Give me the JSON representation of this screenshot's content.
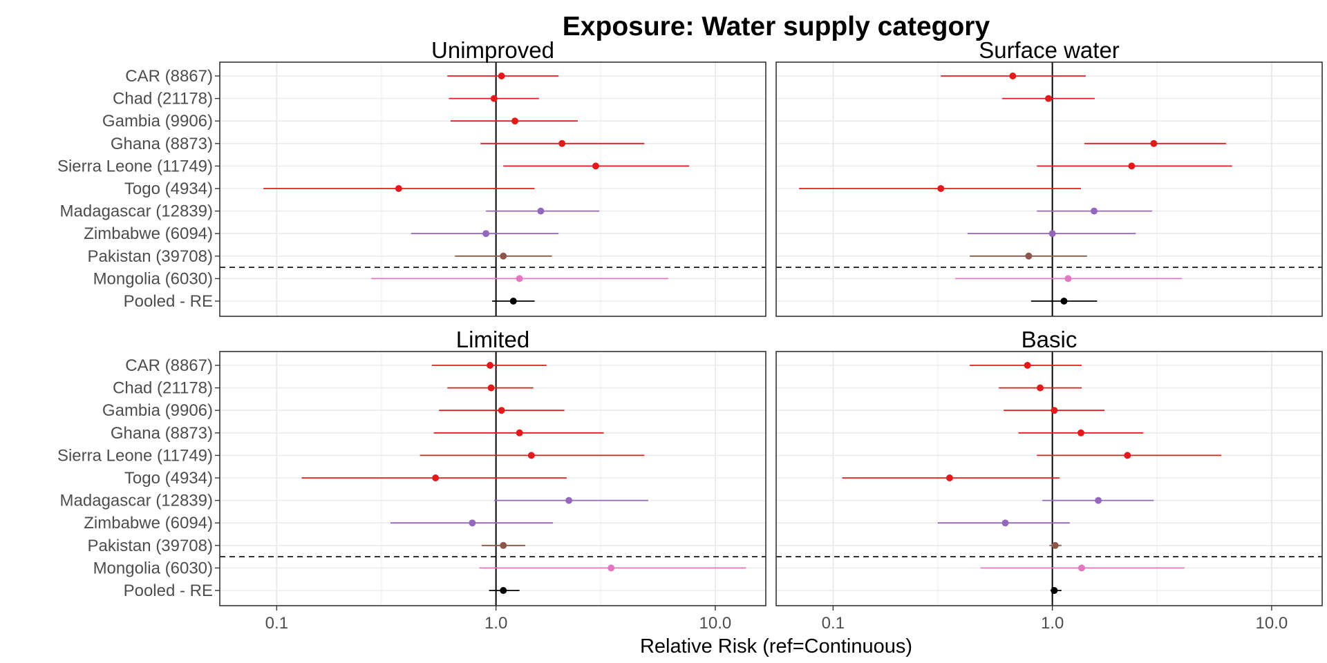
{
  "chart_data": {
    "type": "forest",
    "title": "Exposure: Water supply category",
    "xlabel": "Relative Risk (ref=Continuous)",
    "x_scale": "log",
    "xlim": [
      0.055,
      17
    ],
    "x_ticks": [
      {
        "value": 0.1,
        "label": "0.1"
      },
      {
        "value": 1.0,
        "label": "1.0"
      },
      {
        "value": 10.0,
        "label": "10.0"
      }
    ],
    "reference_line": 1.0,
    "grid": true,
    "rows": [
      {
        "label": "CAR (8867)",
        "color": "#e31a1c"
      },
      {
        "label": "Chad (21178)",
        "color": "#e31a1c"
      },
      {
        "label": "Gambia (9906)",
        "color": "#e31a1c"
      },
      {
        "label": "Ghana (8873)",
        "color": "#e31a1c"
      },
      {
        "label": "Sierra Leone (11749)",
        "color": "#e31a1c"
      },
      {
        "label": "Togo (4934)",
        "color": "#e31a1c"
      },
      {
        "label": "Madagascar (12839)",
        "color": "#9467bd"
      },
      {
        "label": "Zimbabwe (6094)",
        "color": "#9467bd"
      },
      {
        "label": "Pakistan (39708)",
        "color": "#8c564b"
      },
      {
        "label": "Mongolia (6030)",
        "color": "#e377c2"
      },
      {
        "label": "Pooled - RE",
        "color": "#000000"
      }
    ],
    "panels": [
      {
        "title": "Unimproved",
        "estimates": [
          {
            "rr": 1.06,
            "lo": 0.6,
            "hi": 1.93
          },
          {
            "rr": 0.98,
            "lo": 0.61,
            "hi": 1.57
          },
          {
            "rr": 1.22,
            "lo": 0.62,
            "hi": 2.36
          },
          {
            "rr": 2.0,
            "lo": 0.85,
            "hi": 4.75
          },
          {
            "rr": 2.85,
            "lo": 1.08,
            "hi": 7.6
          },
          {
            "rr": 0.36,
            "lo": 0.087,
            "hi": 1.5
          },
          {
            "rr": 1.6,
            "lo": 0.9,
            "hi": 2.96
          },
          {
            "rr": 0.9,
            "lo": 0.41,
            "hi": 1.93
          },
          {
            "rr": 1.08,
            "lo": 0.65,
            "hi": 1.8
          },
          {
            "rr": 1.28,
            "lo": 0.27,
            "hi": 6.1
          },
          {
            "rr": 1.2,
            "lo": 0.96,
            "hi": 1.5
          }
        ]
      },
      {
        "title": "Surface water",
        "estimates": [
          {
            "rr": 0.66,
            "lo": 0.31,
            "hi": 1.42
          },
          {
            "rr": 0.96,
            "lo": 0.59,
            "hi": 1.56
          },
          {
            "rr": 2.9,
            "lo": 1.4,
            "hi": 6.2
          },
          {
            "rr": 2.3,
            "lo": 0.85,
            "hi": 6.6
          },
          {
            "rr": 0.31,
            "lo": 0.07,
            "hi": 1.35
          },
          {
            "rr": 1.55,
            "lo": 0.85,
            "hi": 2.85
          },
          {
            "rr": 1.0,
            "lo": 0.41,
            "hi": 2.4
          },
          {
            "rr": 0.78,
            "lo": 0.42,
            "hi": 1.44
          },
          {
            "rr": 1.18,
            "lo": 0.36,
            "hi": 3.9
          },
          {
            "rr": 1.13,
            "lo": 0.8,
            "hi": 1.6
          }
        ],
        "rows_shown": [
          0,
          1,
          3,
          4,
          5,
          6,
          7,
          8,
          9,
          10
        ]
      },
      {
        "title": "Limited",
        "estimates": [
          {
            "rr": 0.94,
            "lo": 0.51,
            "hi": 1.7
          },
          {
            "rr": 0.95,
            "lo": 0.6,
            "hi": 1.48
          },
          {
            "rr": 1.06,
            "lo": 0.55,
            "hi": 2.05
          },
          {
            "rr": 1.28,
            "lo": 0.52,
            "hi": 3.1
          },
          {
            "rr": 1.45,
            "lo": 0.45,
            "hi": 4.75
          },
          {
            "rr": 0.53,
            "lo": 0.13,
            "hi": 2.1
          },
          {
            "rr": 2.15,
            "lo": 0.98,
            "hi": 4.95
          },
          {
            "rr": 0.78,
            "lo": 0.33,
            "hi": 1.82
          },
          {
            "rr": 1.08,
            "lo": 0.86,
            "hi": 1.36
          },
          {
            "rr": 3.35,
            "lo": 0.84,
            "hi": 13.8
          },
          {
            "rr": 1.08,
            "lo": 0.93,
            "hi": 1.28
          }
        ]
      },
      {
        "title": "Basic",
        "estimates": [
          {
            "rr": 0.77,
            "lo": 0.42,
            "hi": 1.36
          },
          {
            "rr": 0.88,
            "lo": 0.57,
            "hi": 1.36
          },
          {
            "rr": 1.02,
            "lo": 0.6,
            "hi": 1.73
          },
          {
            "rr": 1.35,
            "lo": 0.7,
            "hi": 2.6
          },
          {
            "rr": 2.2,
            "lo": 0.85,
            "hi": 5.9
          },
          {
            "rr": 0.34,
            "lo": 0.11,
            "hi": 1.08
          },
          {
            "rr": 1.62,
            "lo": 0.9,
            "hi": 2.9
          },
          {
            "rr": 0.61,
            "lo": 0.3,
            "hi": 1.2
          },
          {
            "rr": 1.03,
            "lo": 0.97,
            "hi": 1.1
          },
          {
            "rr": 1.36,
            "lo": 0.47,
            "hi": 4.0
          },
          {
            "rr": 1.02,
            "lo": 0.98,
            "hi": 1.1
          }
        ]
      }
    ]
  }
}
